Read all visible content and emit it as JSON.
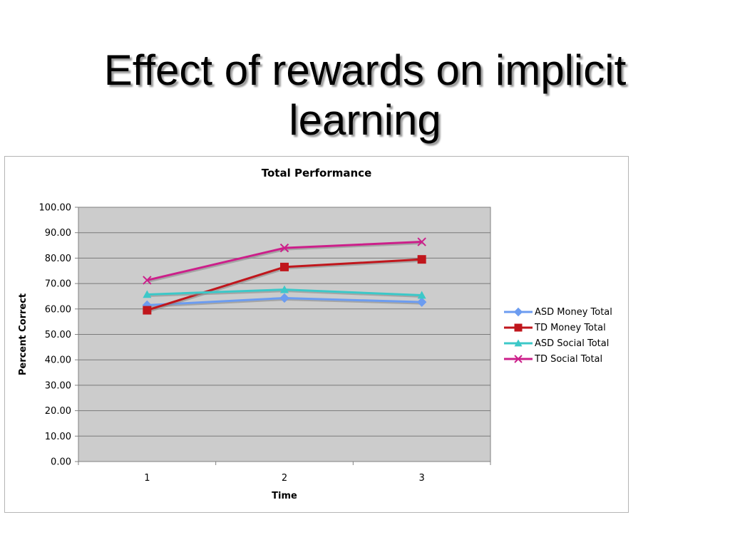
{
  "slide": {
    "title_line1": "Effect of rewards on implicit",
    "title_line2": "learning"
  },
  "chart_data": {
    "type": "line",
    "title": "Total Performance",
    "xlabel": "Time",
    "ylabel": "Percent Correct",
    "categories": [
      "1",
      "2",
      "3"
    ],
    "ylim": [
      0,
      100
    ],
    "ytick_step": 10,
    "ytick_labels": [
      "0.00",
      "10.00",
      "20.00",
      "30.00",
      "40.00",
      "50.00",
      "60.00",
      "70.00",
      "80.00",
      "90.00",
      "100.00"
    ],
    "grid": true,
    "legend_position": "right",
    "plot_background": "#cccccc",
    "series": [
      {
        "name": "ASD Money Total",
        "values": [
          61.5,
          64.3,
          62.7
        ],
        "color": "#6c9cf0",
        "marker": "diamond"
      },
      {
        "name": "TD Money Total",
        "values": [
          59.5,
          76.5,
          79.5
        ],
        "color": "#c0161c",
        "marker": "square"
      },
      {
        "name": "ASD Social Total",
        "values": [
          65.7,
          67.6,
          65.4
        ],
        "color": "#3cc8c8",
        "marker": "triangle"
      },
      {
        "name": "TD Social Total",
        "values": [
          71.3,
          84.0,
          86.4
        ],
        "color": "#cc1f8a",
        "marker": "x"
      }
    ]
  }
}
